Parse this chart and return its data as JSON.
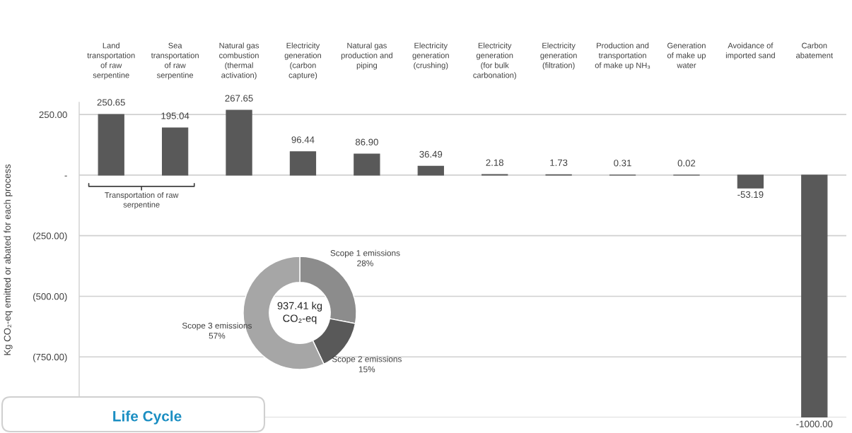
{
  "chart_data": [
    {
      "type": "bar",
      "ylabel": "Kg CO₂-eq emitted or abated for each process",
      "categories": [
        "Land\ntransportation\nof raw\nserpentine",
        "Sea\ntransportation\nof raw\nserpentine",
        "Natural gas\ncombustion\n(thermal\nactivation)",
        "Electricity\ngeneration\n(carbon\ncapture)",
        "Natural gas\nproduction and\npiping",
        "Electricity\ngeneration\n(crushing)",
        "Electricity\ngeneration\n(for bulk\ncarbonation)",
        "Electricity\ngeneration\n(filtration)",
        "Production and\ntransportation\nof make up NH₃",
        "Generation\nof make up\nwater",
        "Avoidance of\nimported sand",
        "Carbon\nabatement"
      ],
      "values": [
        250.65,
        195.04,
        267.65,
        96.44,
        86.9,
        36.49,
        2.18,
        1.73,
        0.31,
        0.02,
        -53.19,
        -1000.0
      ],
      "value_labels": [
        "250.65",
        "195.04",
        "267.65",
        "96.44",
        "86.90",
        "36.49",
        "2.18",
        "1.73",
        "0.31",
        "0.02",
        "-53.19",
        "-1000.00"
      ],
      "color": "#595959",
      "ylim": [
        -1000,
        300
      ],
      "yticks": [
        {
          "value": 250,
          "label": "250.00"
        },
        {
          "value": 0,
          "label": "-"
        },
        {
          "value": -250,
          "label": "(250.00)"
        },
        {
          "value": -500,
          "label": "(500.00)"
        },
        {
          "value": -750,
          "label": "(750.00)"
        },
        {
          "value": -1000,
          "label": null
        }
      ],
      "grid": "y",
      "annotations": [
        "Transportation of raw\nserpentine"
      ]
    },
    {
      "type": "donut",
      "categories": [
        "Scope 1 emissions",
        "Scope 2 emissions",
        "Scope 3 emissions"
      ],
      "values": [
        28,
        15,
        57
      ],
      "value_labels": [
        "28%",
        "15%",
        "57%"
      ],
      "colors": [
        "#8c8c8c",
        "#595959",
        "#a6a6a6"
      ],
      "annotations": [
        "937.41 kg\nCO₂-eq"
      ]
    },
    {
      "type": "other",
      "title": "Life Cycle"
    }
  ]
}
